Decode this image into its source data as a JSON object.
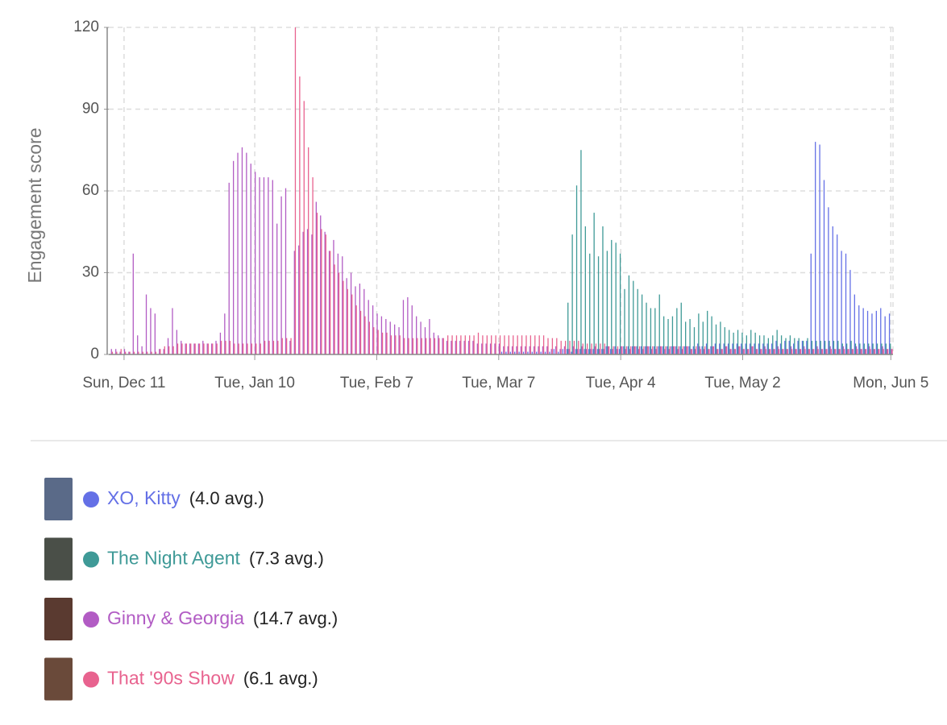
{
  "chart_data": {
    "type": "bar",
    "y_label": "Engagement score",
    "categories": [
      null,
      null,
      null,
      "Sun, Dec 11",
      null,
      null,
      null,
      null,
      null,
      null,
      null,
      null,
      null,
      null,
      null,
      null,
      null,
      null,
      null,
      null,
      null,
      null,
      null,
      null,
      null,
      null,
      null,
      null,
      null,
      null,
      null,
      null,
      null,
      "Tue, Jan 10",
      null,
      null,
      null,
      null,
      null,
      null,
      null,
      null,
      null,
      null,
      null,
      null,
      null,
      null,
      null,
      null,
      null,
      null,
      null,
      null,
      null,
      null,
      null,
      null,
      null,
      null,
      null,
      "Tue, Feb 7",
      null,
      null,
      null,
      null,
      null,
      null,
      null,
      null,
      null,
      null,
      null,
      null,
      null,
      null,
      null,
      null,
      null,
      null,
      null,
      null,
      null,
      null,
      null,
      null,
      null,
      null,
      null,
      "Tue, Mar 7",
      null,
      null,
      null,
      null,
      null,
      null,
      null,
      null,
      null,
      null,
      null,
      null,
      null,
      null,
      null,
      null,
      null,
      null,
      null,
      null,
      null,
      null,
      null,
      null,
      null,
      null,
      null,
      "Tue, Apr 4",
      null,
      null,
      null,
      null,
      null,
      null,
      null,
      null,
      null,
      null,
      null,
      null,
      null,
      null,
      null,
      null,
      null,
      null,
      null,
      null,
      null,
      null,
      null,
      null,
      null,
      null,
      null,
      "Tue, May 2",
      null,
      null,
      null,
      null,
      null,
      null,
      null,
      null,
      null,
      null,
      null,
      null,
      null,
      null,
      null,
      null,
      null,
      null,
      null,
      null,
      null,
      null,
      null,
      null,
      null,
      null,
      null,
      null,
      null,
      null,
      null,
      null,
      null,
      "Mon, Jun 5"
    ],
    "ylim": [
      0,
      120
    ],
    "yticks": [
      0,
      30,
      60,
      90,
      120
    ],
    "grid": true,
    "series": [
      {
        "name": "XO, Kitty",
        "avg_label": "(4.0 avg.)",
        "color": "#6470e6",
        "thumb": "#5a6a88",
        "values": [
          0,
          0,
          0,
          0,
          0,
          0,
          0,
          0,
          0,
          0,
          0,
          0,
          0,
          0,
          0,
          0,
          0,
          0,
          0,
          0,
          0,
          0,
          0,
          0,
          0,
          0,
          0,
          0,
          0,
          0,
          0,
          0,
          0,
          0,
          0,
          0,
          0,
          0,
          0,
          0,
          0,
          0,
          0,
          0,
          0,
          0,
          0,
          0,
          0,
          0,
          0,
          0,
          0,
          0,
          0,
          0,
          0,
          0,
          0,
          0,
          0,
          0,
          0,
          0,
          0,
          0,
          0,
          0,
          0,
          0,
          0,
          0,
          0,
          0,
          0,
          0,
          0,
          0,
          0,
          0,
          0,
          0,
          0,
          0,
          0,
          0,
          0,
          0,
          0,
          0,
          1,
          1,
          1,
          1,
          1,
          1,
          1,
          1,
          1,
          1,
          1,
          1,
          2,
          1,
          2,
          2,
          1,
          2,
          2,
          2,
          2,
          2,
          2,
          2,
          3,
          2,
          3,
          2,
          3,
          3,
          3,
          3,
          3,
          3,
          3,
          3,
          3,
          3,
          3,
          3,
          3,
          3,
          3,
          3,
          3,
          4,
          3,
          4,
          3,
          4,
          4,
          4,
          4,
          4,
          4,
          4,
          4,
          4,
          4,
          4,
          4,
          4,
          4,
          5,
          4,
          5,
          5,
          4,
          5,
          5,
          5,
          37,
          78,
          77,
          64,
          54,
          47,
          44,
          38,
          37,
          31,
          22,
          18,
          17,
          16,
          15,
          16,
          17,
          14,
          15
        ]
      },
      {
        "name": "The Night Agent",
        "avg_label": "(7.3 avg.)",
        "color": "#3f9a97",
        "thumb": "#4a4f48",
        "values": [
          0,
          0,
          0,
          0,
          0,
          0,
          0,
          0,
          0,
          0,
          0,
          0,
          0,
          0,
          0,
          0,
          0,
          0,
          0,
          0,
          0,
          0,
          0,
          0,
          0,
          0,
          0,
          0,
          0,
          0,
          0,
          0,
          0,
          0,
          0,
          0,
          0,
          0,
          0,
          0,
          0,
          0,
          0,
          0,
          0,
          0,
          0,
          0,
          0,
          0,
          0,
          0,
          0,
          0,
          0,
          0,
          0,
          0,
          0,
          0,
          0,
          0,
          0,
          0,
          0,
          0,
          0,
          0,
          0,
          0,
          0,
          0,
          0,
          0,
          0,
          0,
          0,
          0,
          0,
          0,
          0,
          0,
          0,
          0,
          0,
          0,
          0,
          0,
          0,
          0,
          0,
          0,
          0,
          0,
          0,
          0,
          0,
          0,
          0,
          0,
          0,
          0,
          0,
          0,
          0,
          19,
          44,
          62,
          75,
          47,
          37,
          52,
          36,
          47,
          38,
          42,
          41,
          37,
          24,
          29,
          27,
          24,
          22,
          19,
          17,
          17,
          22,
          14,
          13,
          14,
          17,
          19,
          12,
          13,
          10,
          15,
          12,
          16,
          14,
          11,
          12,
          10,
          9,
          8,
          9,
          8,
          7,
          9,
          8,
          7,
          7,
          6,
          7,
          9,
          7,
          6,
          7,
          6,
          6,
          5,
          6,
          5,
          5,
          5,
          5,
          5,
          5,
          5,
          4,
          4,
          5,
          4,
          4,
          4,
          4,
          4,
          4,
          4,
          4,
          4
        ]
      },
      {
        "name": "Ginny & Georgia",
        "avg_label": "(14.7 avg.)",
        "color": "#b25cc4",
        "thumb": "#5a3a30",
        "values": [
          2,
          2,
          1,
          2,
          1,
          37,
          7,
          3,
          22,
          17,
          15,
          2,
          2,
          6,
          17,
          9,
          5,
          4,
          4,
          4,
          4,
          5,
          4,
          4,
          5,
          8,
          15,
          63,
          71,
          74,
          76,
          74,
          70,
          67,
          65,
          65,
          65,
          64,
          48,
          58,
          61,
          5,
          38,
          40,
          45,
          46,
          44,
          56,
          51,
          45,
          38,
          42,
          37,
          36,
          28,
          30,
          25,
          26,
          24,
          20,
          18,
          15,
          14,
          13,
          12,
          11,
          10,
          20,
          21,
          18,
          14,
          12,
          10,
          13,
          8,
          7,
          6,
          5,
          5,
          5,
          5,
          5,
          5,
          5,
          4,
          4,
          4,
          4,
          4,
          4,
          3,
          3,
          3,
          3,
          3,
          3,
          3,
          3,
          3,
          3,
          3,
          2,
          3,
          2,
          3,
          2,
          3,
          2,
          3,
          2,
          2,
          3,
          2,
          2,
          3,
          2,
          2,
          3,
          2,
          2,
          3,
          2,
          2,
          3,
          2,
          2,
          3,
          2,
          2,
          3,
          2,
          2,
          3,
          2,
          2,
          3,
          2,
          2,
          3,
          2,
          2,
          3,
          2,
          2,
          3,
          2,
          2,
          3,
          2,
          2,
          3,
          2,
          2,
          3,
          2,
          2,
          3,
          2,
          2,
          3,
          2,
          2,
          3,
          2,
          2,
          3,
          2,
          2,
          3,
          2,
          2,
          3,
          2,
          2,
          3,
          2,
          2,
          3,
          2,
          2
        ]
      },
      {
        "name": "That '90s Show",
        "avg_label": "(6.1 avg.)",
        "color": "#e8638f",
        "thumb": "#6a4a3a",
        "values": [
          1,
          1,
          2,
          1,
          1,
          1,
          1,
          1,
          1,
          1,
          1,
          2,
          3,
          3,
          3,
          4,
          4,
          4,
          4,
          4,
          4,
          4,
          4,
          4,
          4,
          5,
          5,
          5,
          4,
          4,
          4,
          4,
          4,
          4,
          4,
          5,
          5,
          5,
          5,
          6,
          6,
          6,
          120,
          102,
          93,
          76,
          65,
          52,
          46,
          44,
          38,
          33,
          30,
          27,
          24,
          22,
          18,
          16,
          14,
          12,
          10,
          9,
          8,
          8,
          7,
          7,
          7,
          6,
          6,
          6,
          6,
          6,
          6,
          6,
          6,
          6,
          6,
          7,
          7,
          7,
          7,
          7,
          7,
          7,
          8,
          7,
          7,
          7,
          7,
          7,
          7,
          7,
          7,
          7,
          7,
          7,
          7,
          7,
          7,
          7,
          6,
          6,
          6,
          5,
          5,
          5,
          5,
          5,
          4,
          4,
          4,
          4,
          4,
          4,
          3,
          3,
          3,
          3,
          3,
          3,
          3,
          3,
          3,
          3,
          3,
          3,
          3,
          3,
          3,
          3,
          3,
          3,
          3,
          2,
          3,
          2,
          3,
          2,
          3,
          2,
          2,
          3,
          2,
          2,
          3,
          2,
          2,
          3,
          2,
          2,
          2,
          2,
          2,
          2,
          2,
          2,
          2,
          2,
          2,
          2,
          2,
          2,
          2,
          2,
          2,
          2,
          2,
          2,
          2,
          2,
          2,
          2,
          2,
          2,
          2,
          2,
          2,
          2,
          2,
          2
        ]
      }
    ]
  }
}
